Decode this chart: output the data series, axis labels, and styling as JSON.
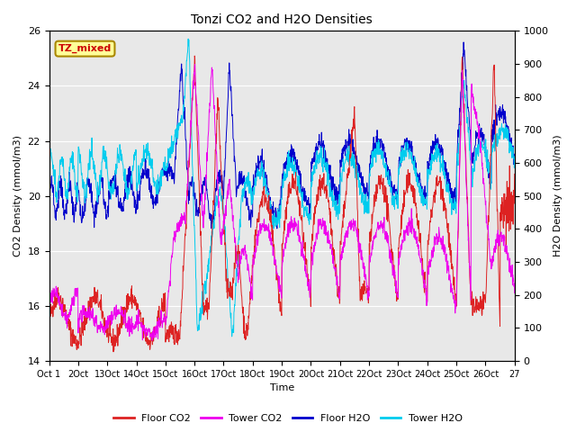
{
  "title": "Tonzi CO2 and H2O Densities",
  "xlabel": "Time",
  "ylabel_left": "CO2 Density (mmol/m3)",
  "ylabel_right": "H2O Density (mmol/m3)",
  "annotation_text": "TZ_mixed",
  "annotation_color": "#cc0000",
  "annotation_bg": "#ffff99",
  "annotation_border": "#aa8800",
  "ylim_left": [
    14,
    26
  ],
  "ylim_right": [
    0,
    1000
  ],
  "yticks_left": [
    14,
    16,
    18,
    20,
    22,
    24,
    26
  ],
  "yticks_right": [
    0,
    100,
    200,
    300,
    400,
    500,
    600,
    700,
    800,
    900,
    1000
  ],
  "xtick_labels": [
    "Oct 1",
    "2Oct",
    "13Oct",
    "14Oct",
    "15Oct",
    "16Oct",
    "17Oct",
    "18Oct",
    "19Oct",
    "20Oct",
    "21Oct",
    "22Oct",
    "23Oct",
    "24Oct",
    "25Oct",
    "26Oct",
    "27"
  ],
  "colors": {
    "floor_co2": "#dd2222",
    "tower_co2": "#ee00ee",
    "floor_h2o": "#0000cc",
    "tower_h2o": "#00ccee"
  },
  "legend_labels": [
    "Floor CO2",
    "Tower CO2",
    "Floor H2O",
    "Tower H2O"
  ],
  "background_color": "#e8e8e8",
  "grid_color": "#ffffff",
  "n_points": 1600,
  "figsize": [
    6.4,
    4.8
  ],
  "dpi": 100
}
